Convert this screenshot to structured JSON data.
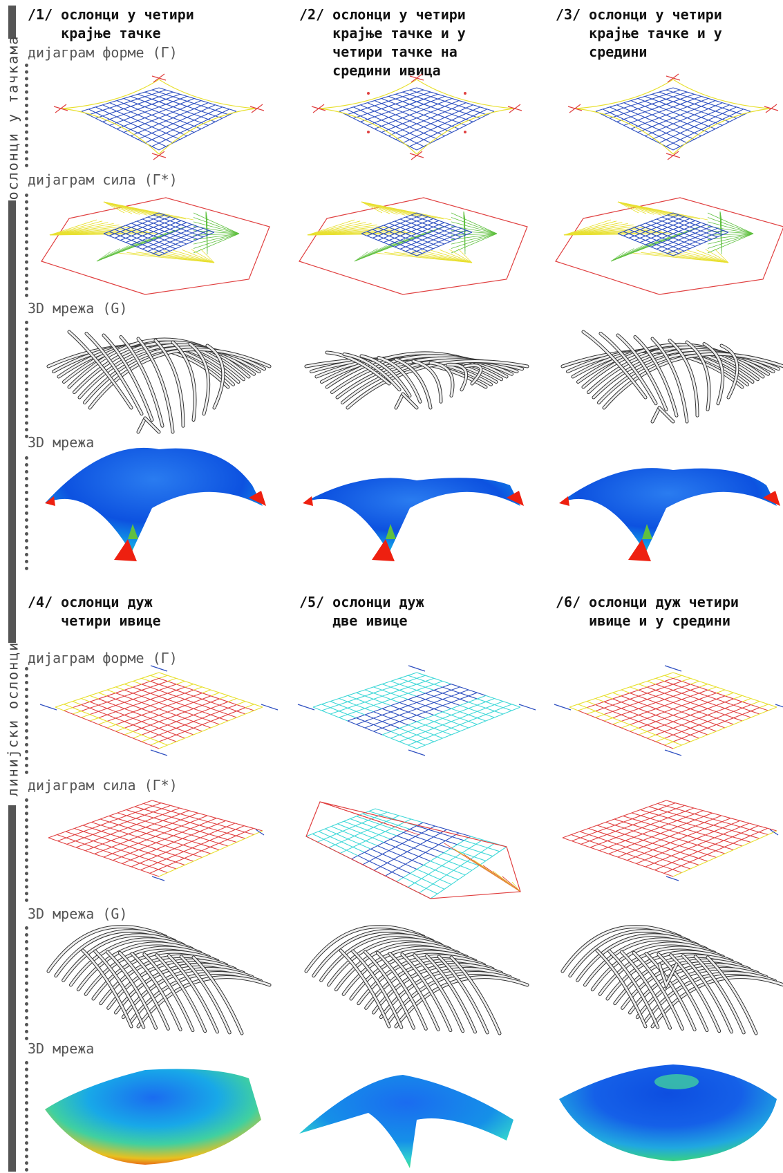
{
  "sections": [
    {
      "title": "ослонци у тачкама"
    },
    {
      "title": "линијски ослонци"
    }
  ],
  "row_labels": {
    "form": "дијаграм форме (Γ)",
    "force": "дијаграм сила (Γ*)",
    "mesh_g": "3D мрежа (G)",
    "mesh": "3D мрежа"
  },
  "cases": [
    {
      "number": "/1/",
      "title": "ослонци у четири\nкрајње тачке"
    },
    {
      "number": "/2/",
      "title": "ослонци у четири\nкрајње тачке и у\nчетири тачке на\nсредини ивица"
    },
    {
      "number": "/3/",
      "title": "ослонци у четири\nкрајње тачке и у\nсредини"
    },
    {
      "number": "/4/",
      "title": "ослонци дуж\nчетири ивице"
    },
    {
      "number": "/5/",
      "title": "ослонци дуж\nдве ивице"
    },
    {
      "number": "/6/",
      "title": "ослонци дуж четири\nивице и у средини"
    }
  ],
  "colors": {
    "mesh_blue": "#2d4fc0",
    "mesh_red": "#e04040",
    "mesh_yellow": "#e8e030",
    "mesh_green": "#60c040",
    "mesh_cyan": "#40d8d8",
    "shell_blue": "#1560e8",
    "support_red": "#ee2010",
    "structure_gray": "#888888",
    "sidebar": "#555555"
  },
  "icons": [
    "form-diagram",
    "force-diagram",
    "structure-3d",
    "shell-3d"
  ]
}
